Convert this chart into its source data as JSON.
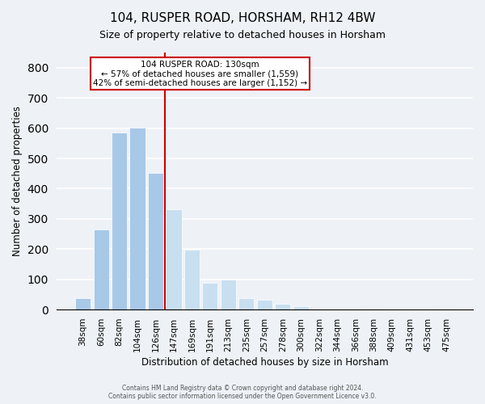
{
  "title": "104, RUSPER ROAD, HORSHAM, RH12 4BW",
  "subtitle": "Size of property relative to detached houses in Horsham",
  "xlabel": "Distribution of detached houses by size in Horsham",
  "ylabel": "Number of detached properties",
  "bar_labels": [
    "38sqm",
    "60sqm",
    "82sqm",
    "104sqm",
    "126sqm",
    "147sqm",
    "169sqm",
    "191sqm",
    "213sqm",
    "235sqm",
    "257sqm",
    "278sqm",
    "300sqm",
    "322sqm",
    "344sqm",
    "366sqm",
    "388sqm",
    "409sqm",
    "431sqm",
    "453sqm",
    "475sqm"
  ],
  "bar_values": [
    38,
    265,
    585,
    602,
    453,
    333,
    197,
    90,
    100,
    38,
    32,
    20,
    10,
    0,
    0,
    0,
    2,
    0,
    0,
    0,
    2
  ],
  "bar_color_left": "#a8c8e8",
  "bar_color_right": "#c8dff0",
  "highlight_index": 4,
  "highlight_color": "#cc0000",
  "annotation_title": "104 RUSPER ROAD: 130sqm",
  "annotation_line1": "← 57% of detached houses are smaller (1,559)",
  "annotation_line2": "42% of semi-detached houses are larger (1,152) →",
  "annotation_box_color": "#ffffff",
  "annotation_box_edgecolor": "#cc0000",
  "ylim": [
    0,
    850
  ],
  "yticks": [
    0,
    100,
    200,
    300,
    400,
    500,
    600,
    700,
    800
  ],
  "background_color": "#eef2f7",
  "footer_line1": "Contains HM Land Registry data © Crown copyright and database right 2024.",
  "footer_line2": "Contains public sector information licensed under the Open Government Licence v3.0."
}
